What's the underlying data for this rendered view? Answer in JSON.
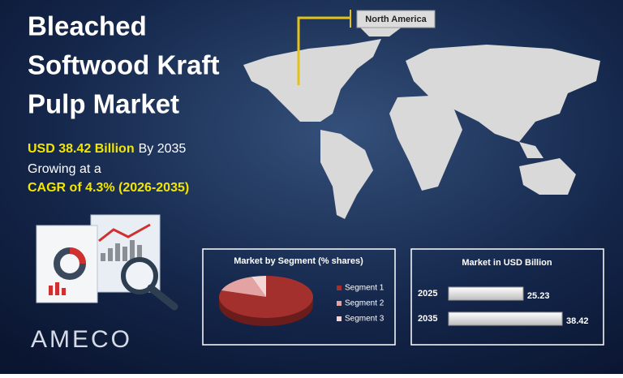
{
  "header": {
    "title_lines": [
      "Bleached",
      "Softwood Kraft",
      "Pulp Market"
    ],
    "value": "USD 38.42 Billion",
    "value_suffix": "By 2035",
    "growth_intro": "Growing at a",
    "cagr": "CAGR of 4.3% (2026-2035)"
  },
  "map_label": "North America",
  "logo": "AMECO",
  "chart_data": [
    {
      "type": "pie",
      "title": "Market by Segment  (% shares)",
      "categories": [
        "Segment 1",
        "Segment 2",
        "Segment 3"
      ],
      "values": [
        80,
        15,
        5
      ],
      "colors": [
        "#a3302d",
        "#e3a3a3",
        "#f3d6d6"
      ]
    },
    {
      "type": "bar",
      "title": "Market in USD Billion",
      "categories": [
        "2025",
        "2035"
      ],
      "values": [
        25.23,
        38.42
      ],
      "color": "#f2f2f2"
    }
  ]
}
